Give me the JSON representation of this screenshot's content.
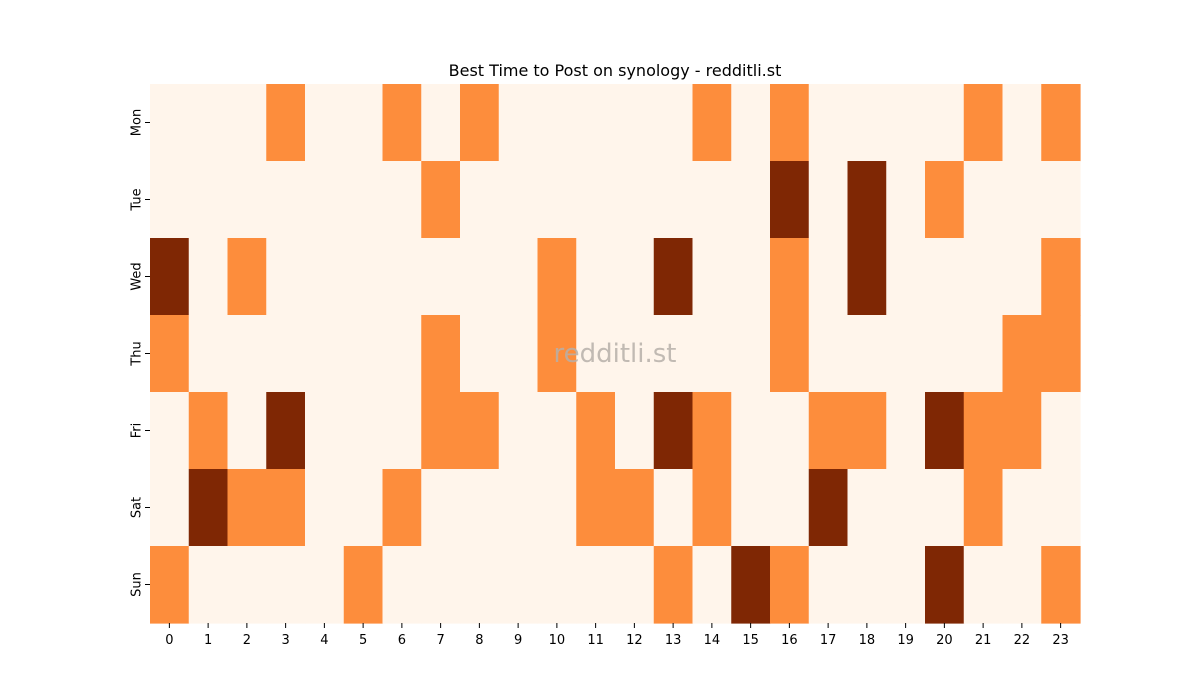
{
  "chart_data": {
    "type": "heatmap",
    "title": "Best Time to Post on synology - redditli.st",
    "xlabel": "",
    "ylabel": "",
    "x_categories": [
      "0",
      "1",
      "2",
      "3",
      "4",
      "5",
      "6",
      "7",
      "8",
      "9",
      "10",
      "11",
      "12",
      "13",
      "14",
      "15",
      "16",
      "17",
      "18",
      "19",
      "20",
      "21",
      "22",
      "23"
    ],
    "y_categories": [
      "Mon",
      "Tue",
      "Wed",
      "Thu",
      "Fri",
      "Sat",
      "Sun"
    ],
    "colorscale": {
      "0": "#fff5eb",
      "1": "#fd8d3c",
      "2": "#7f2704"
    },
    "colorbar": false,
    "values": [
      [
        0,
        0,
        0,
        1,
        0,
        0,
        1,
        0,
        1,
        0,
        0,
        0,
        0,
        0,
        1,
        0,
        1,
        0,
        0,
        0,
        0,
        1,
        0,
        1
      ],
      [
        0,
        0,
        0,
        0,
        0,
        0,
        0,
        1,
        0,
        0,
        0,
        0,
        0,
        0,
        0,
        0,
        2,
        0,
        2,
        0,
        1,
        0,
        0,
        0
      ],
      [
        2,
        0,
        1,
        0,
        0,
        0,
        0,
        0,
        0,
        0,
        1,
        0,
        0,
        2,
        0,
        0,
        1,
        0,
        2,
        0,
        0,
        0,
        0,
        1
      ],
      [
        1,
        0,
        0,
        0,
        0,
        0,
        0,
        1,
        0,
        0,
        1,
        0,
        0,
        0,
        0,
        0,
        1,
        0,
        0,
        0,
        0,
        0,
        1,
        1
      ],
      [
        0,
        1,
        0,
        2,
        0,
        0,
        0,
        1,
        1,
        0,
        0,
        1,
        0,
        2,
        1,
        0,
        0,
        1,
        1,
        0,
        2,
        1,
        1,
        0
      ],
      [
        0,
        2,
        1,
        1,
        0,
        0,
        1,
        0,
        0,
        0,
        0,
        1,
        1,
        0,
        1,
        0,
        0,
        2,
        0,
        0,
        0,
        1,
        0,
        0
      ],
      [
        1,
        0,
        0,
        0,
        0,
        1,
        0,
        0,
        0,
        0,
        0,
        0,
        0,
        1,
        0,
        2,
        1,
        0,
        0,
        0,
        2,
        0,
        0,
        1
      ]
    ],
    "watermark": "redditli.st"
  }
}
